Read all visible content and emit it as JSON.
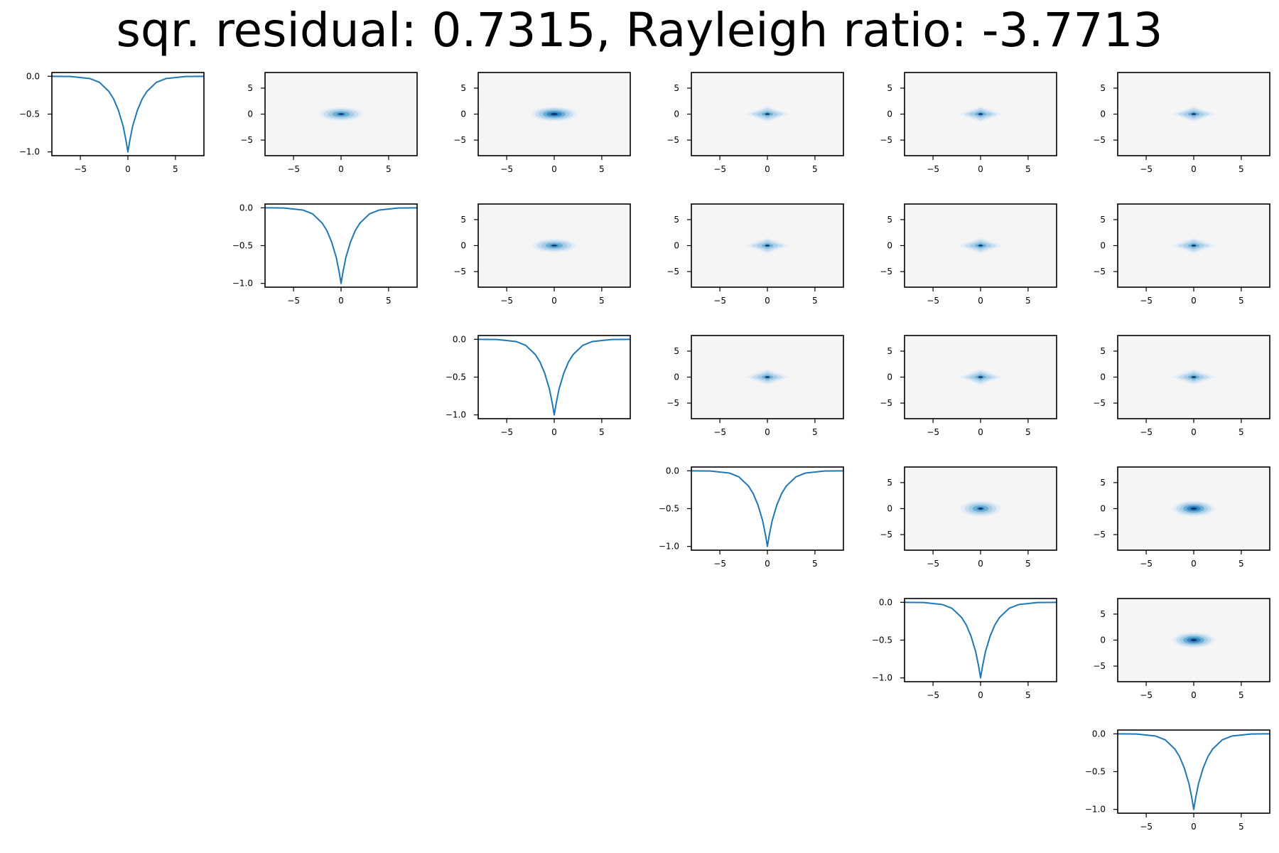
{
  "figure": {
    "title": "sqr. residual: 0.7315, Rayleigh ratio: -3.7713"
  },
  "colors": {
    "line": "#1f77b4",
    "contour_background": "#f5f5f5",
    "contour_levels": [
      "#e3eef9",
      "#c9ddf0",
      "#a5cde3",
      "#6aaed6",
      "#3787c0",
      "#105ba4",
      "#08306b"
    ],
    "axes": "#000000"
  },
  "chart_data": {
    "type": "grid",
    "grid_size": 6,
    "layout": "upper-triangular",
    "subplots": [
      {
        "row": 0,
        "col": 0,
        "type": "line",
        "xlim": [
          -8,
          8
        ],
        "ylim": [
          -1.05,
          0.05
        ],
        "xticks": [
          "-5",
          "0",
          "5"
        ],
        "yticks": [
          "0.0",
          "-0.5",
          "-1.0"
        ],
        "x": [
          -8,
          -6,
          -4,
          -3,
          -2,
          -1.5,
          -1,
          -0.5,
          -0.2,
          0,
          0.2,
          0.5,
          1,
          1.5,
          2,
          3,
          4,
          6,
          8
        ],
        "y": [
          0.0,
          -0.003,
          -0.03,
          -0.08,
          -0.2,
          -0.3,
          -0.45,
          -0.66,
          -0.85,
          -1.0,
          -0.85,
          -0.66,
          -0.45,
          -0.3,
          -0.2,
          -0.08,
          -0.03,
          -0.003,
          0.0
        ]
      },
      {
        "row": 0,
        "col": 1,
        "type": "contour",
        "shape": "round",
        "spread": [
          2.3,
          1.3
        ],
        "levels": 5,
        "xlim": [
          -8,
          8
        ],
        "ylim": [
          -8,
          8
        ],
        "xticks": [
          "-5",
          "0",
          "5"
        ],
        "yticks": [
          "5",
          "0",
          "-5"
        ]
      },
      {
        "row": 0,
        "col": 2,
        "type": "contour",
        "shape": "round",
        "spread": [
          2.4,
          1.4
        ],
        "levels": 6,
        "xlim": [
          -8,
          8
        ],
        "ylim": [
          -8,
          8
        ],
        "xticks": [
          "-5",
          "0",
          "5"
        ],
        "yticks": [
          "5",
          "0",
          "-5"
        ]
      },
      {
        "row": 0,
        "col": 3,
        "type": "contour",
        "shape": "diamond",
        "spread": [
          2.1,
          1.4
        ],
        "levels": 4,
        "xlim": [
          -8,
          8
        ],
        "ylim": [
          -8,
          8
        ],
        "xticks": [
          "-5",
          "0",
          "5"
        ],
        "yticks": [
          "5",
          "0",
          "-5"
        ]
      },
      {
        "row": 0,
        "col": 4,
        "type": "contour",
        "shape": "diamond",
        "spread": [
          2.1,
          1.4
        ],
        "levels": 4,
        "xlim": [
          -8,
          8
        ],
        "ylim": [
          -8,
          8
        ],
        "xticks": [
          "-5",
          "0",
          "5"
        ],
        "yticks": [
          "5",
          "0",
          "-5"
        ]
      },
      {
        "row": 0,
        "col": 5,
        "type": "contour",
        "shape": "diamond",
        "spread": [
          2.1,
          1.4
        ],
        "levels": 4,
        "xlim": [
          -8,
          8
        ],
        "ylim": [
          -8,
          8
        ],
        "xticks": [
          "-5",
          "0",
          "5"
        ],
        "yticks": [
          "5",
          "0",
          "-5"
        ]
      },
      {
        "row": 1,
        "col": 1,
        "type": "line",
        "xlim": [
          -8,
          8
        ],
        "ylim": [
          -1.05,
          0.05
        ],
        "xticks": [
          "-5",
          "0",
          "5"
        ],
        "yticks": [
          "0.0",
          "-0.5",
          "-1.0"
        ],
        "x": [
          -8,
          -6,
          -4,
          -3,
          -2,
          -1.5,
          -1,
          -0.5,
          -0.2,
          0,
          0.2,
          0.5,
          1,
          1.5,
          2,
          3,
          4,
          6,
          8
        ],
        "y": [
          0.0,
          -0.003,
          -0.03,
          -0.08,
          -0.2,
          -0.3,
          -0.45,
          -0.66,
          -0.85,
          -1.0,
          -0.85,
          -0.66,
          -0.45,
          -0.3,
          -0.2,
          -0.08,
          -0.03,
          -0.003,
          0.0
        ]
      },
      {
        "row": 1,
        "col": 2,
        "type": "contour",
        "shape": "round",
        "spread": [
          2.3,
          1.3
        ],
        "levels": 5,
        "xlim": [
          -8,
          8
        ],
        "ylim": [
          -8,
          8
        ],
        "xticks": [
          "-5",
          "0",
          "5"
        ],
        "yticks": [
          "5",
          "0",
          "-5"
        ]
      },
      {
        "row": 1,
        "col": 3,
        "type": "contour",
        "shape": "diamond",
        "spread": [
          2.1,
          1.4
        ],
        "levels": 4,
        "xlim": [
          -8,
          8
        ],
        "ylim": [
          -8,
          8
        ],
        "xticks": [
          "-5",
          "0",
          "5"
        ],
        "yticks": [
          "5",
          "0",
          "-5"
        ]
      },
      {
        "row": 1,
        "col": 4,
        "type": "contour",
        "shape": "diamond",
        "spread": [
          2.1,
          1.4
        ],
        "levels": 4,
        "xlim": [
          -8,
          8
        ],
        "ylim": [
          -8,
          8
        ],
        "xticks": [
          "-5",
          "0",
          "5"
        ],
        "yticks": [
          "5",
          "0",
          "-5"
        ]
      },
      {
        "row": 1,
        "col": 5,
        "type": "contour",
        "shape": "diamond",
        "spread": [
          2.1,
          1.4
        ],
        "levels": 4,
        "xlim": [
          -8,
          8
        ],
        "ylim": [
          -8,
          8
        ],
        "xticks": [
          "-5",
          "0",
          "5"
        ],
        "yticks": [
          "5",
          "0",
          "-5"
        ]
      },
      {
        "row": 2,
        "col": 2,
        "type": "line",
        "xlim": [
          -8,
          8
        ],
        "ylim": [
          -1.05,
          0.05
        ],
        "xticks": [
          "-5",
          "0",
          "5"
        ],
        "yticks": [
          "0.0",
          "-0.5",
          "-1.0"
        ],
        "x": [
          -8,
          -6,
          -4,
          -3,
          -2,
          -1.5,
          -1,
          -0.5,
          -0.2,
          0,
          0.2,
          0.5,
          1,
          1.5,
          2,
          3,
          4,
          6,
          8
        ],
        "y": [
          0.0,
          -0.003,
          -0.03,
          -0.08,
          -0.2,
          -0.3,
          -0.45,
          -0.66,
          -0.85,
          -1.0,
          -0.85,
          -0.66,
          -0.45,
          -0.3,
          -0.2,
          -0.08,
          -0.03,
          -0.003,
          0.0
        ]
      },
      {
        "row": 2,
        "col": 3,
        "type": "contour",
        "shape": "diamond",
        "spread": [
          2.1,
          1.4
        ],
        "levels": 4,
        "xlim": [
          -8,
          8
        ],
        "ylim": [
          -8,
          8
        ],
        "xticks": [
          "-5",
          "0",
          "5"
        ],
        "yticks": [
          "5",
          "0",
          "-5"
        ]
      },
      {
        "row": 2,
        "col": 4,
        "type": "contour",
        "shape": "diamond",
        "spread": [
          2.1,
          1.4
        ],
        "levels": 4,
        "xlim": [
          -8,
          8
        ],
        "ylim": [
          -8,
          8
        ],
        "xticks": [
          "-5",
          "0",
          "5"
        ],
        "yticks": [
          "5",
          "0",
          "-5"
        ]
      },
      {
        "row": 2,
        "col": 5,
        "type": "contour",
        "shape": "diamond",
        "spread": [
          2.1,
          1.4
        ],
        "levels": 4,
        "xlim": [
          -8,
          8
        ],
        "ylim": [
          -8,
          8
        ],
        "xticks": [
          "-5",
          "0",
          "5"
        ],
        "yticks": [
          "5",
          "0",
          "-5"
        ]
      },
      {
        "row": 3,
        "col": 3,
        "type": "line",
        "xlim": [
          -8,
          8
        ],
        "ylim": [
          -1.05,
          0.05
        ],
        "xticks": [
          "-5",
          "0",
          "5"
        ],
        "yticks": [
          "0.0",
          "-0.5",
          "-1.0"
        ],
        "x": [
          -8,
          -6,
          -4,
          -3,
          -2,
          -1.5,
          -1,
          -0.5,
          -0.2,
          0,
          0.2,
          0.5,
          1,
          1.5,
          2,
          3,
          4,
          6,
          8
        ],
        "y": [
          0.0,
          -0.003,
          -0.03,
          -0.08,
          -0.2,
          -0.3,
          -0.45,
          -0.66,
          -0.85,
          -1.0,
          -0.85,
          -0.66,
          -0.45,
          -0.3,
          -0.2,
          -0.08,
          -0.03,
          -0.003,
          0.0
        ]
      },
      {
        "row": 3,
        "col": 4,
        "type": "contour",
        "shape": "round",
        "spread": [
          2.1,
          1.5
        ],
        "levels": 5,
        "xlim": [
          -8,
          8
        ],
        "ylim": [
          -8,
          8
        ],
        "xticks": [
          "-5",
          "0",
          "5"
        ],
        "yticks": [
          "5",
          "0",
          "-5"
        ]
      },
      {
        "row": 3,
        "col": 5,
        "type": "contour",
        "shape": "round",
        "spread": [
          2.2,
          1.5
        ],
        "levels": 6,
        "xlim": [
          -8,
          8
        ],
        "ylim": [
          -8,
          8
        ],
        "xticks": [
          "-5",
          "0",
          "5"
        ],
        "yticks": [
          "5",
          "0",
          "-5"
        ]
      },
      {
        "row": 4,
        "col": 4,
        "type": "line",
        "xlim": [
          -8,
          8
        ],
        "ylim": [
          -1.05,
          0.05
        ],
        "xticks": [
          "-5",
          "0",
          "5"
        ],
        "yticks": [
          "0.0",
          "-0.5",
          "-1.0"
        ],
        "x": [
          -8,
          -6,
          -4,
          -3,
          -2,
          -1.5,
          -1,
          -0.5,
          -0.2,
          0,
          0.2,
          0.5,
          1,
          1.5,
          2,
          3,
          4,
          6,
          8
        ],
        "y": [
          0.0,
          -0.003,
          -0.03,
          -0.08,
          -0.2,
          -0.3,
          -0.45,
          -0.66,
          -0.85,
          -1.0,
          -0.85,
          -0.66,
          -0.45,
          -0.3,
          -0.2,
          -0.08,
          -0.03,
          -0.003,
          0.0
        ]
      },
      {
        "row": 4,
        "col": 5,
        "type": "contour",
        "shape": "round",
        "spread": [
          2.2,
          1.5
        ],
        "levels": 6,
        "xlim": [
          -8,
          8
        ],
        "ylim": [
          -8,
          8
        ],
        "xticks": [
          "-5",
          "0",
          "5"
        ],
        "yticks": [
          "5",
          "0",
          "-5"
        ]
      },
      {
        "row": 5,
        "col": 5,
        "type": "line",
        "xlim": [
          -8,
          8
        ],
        "ylim": [
          -1.05,
          0.05
        ],
        "xticks": [
          "-5",
          "0",
          "5"
        ],
        "yticks": [
          "0.0",
          "-0.5",
          "-1.0"
        ],
        "x": [
          -8,
          -6,
          -4,
          -3,
          -2,
          -1.5,
          -1,
          -0.5,
          -0.2,
          0,
          0.2,
          0.5,
          1,
          1.5,
          2,
          3,
          4,
          6,
          8
        ],
        "y": [
          0.0,
          -0.003,
          -0.03,
          -0.08,
          -0.2,
          -0.3,
          -0.45,
          -0.66,
          -0.85,
          -1.0,
          -0.85,
          -0.66,
          -0.45,
          -0.3,
          -0.2,
          -0.08,
          -0.03,
          -0.003,
          0.0
        ]
      }
    ]
  }
}
